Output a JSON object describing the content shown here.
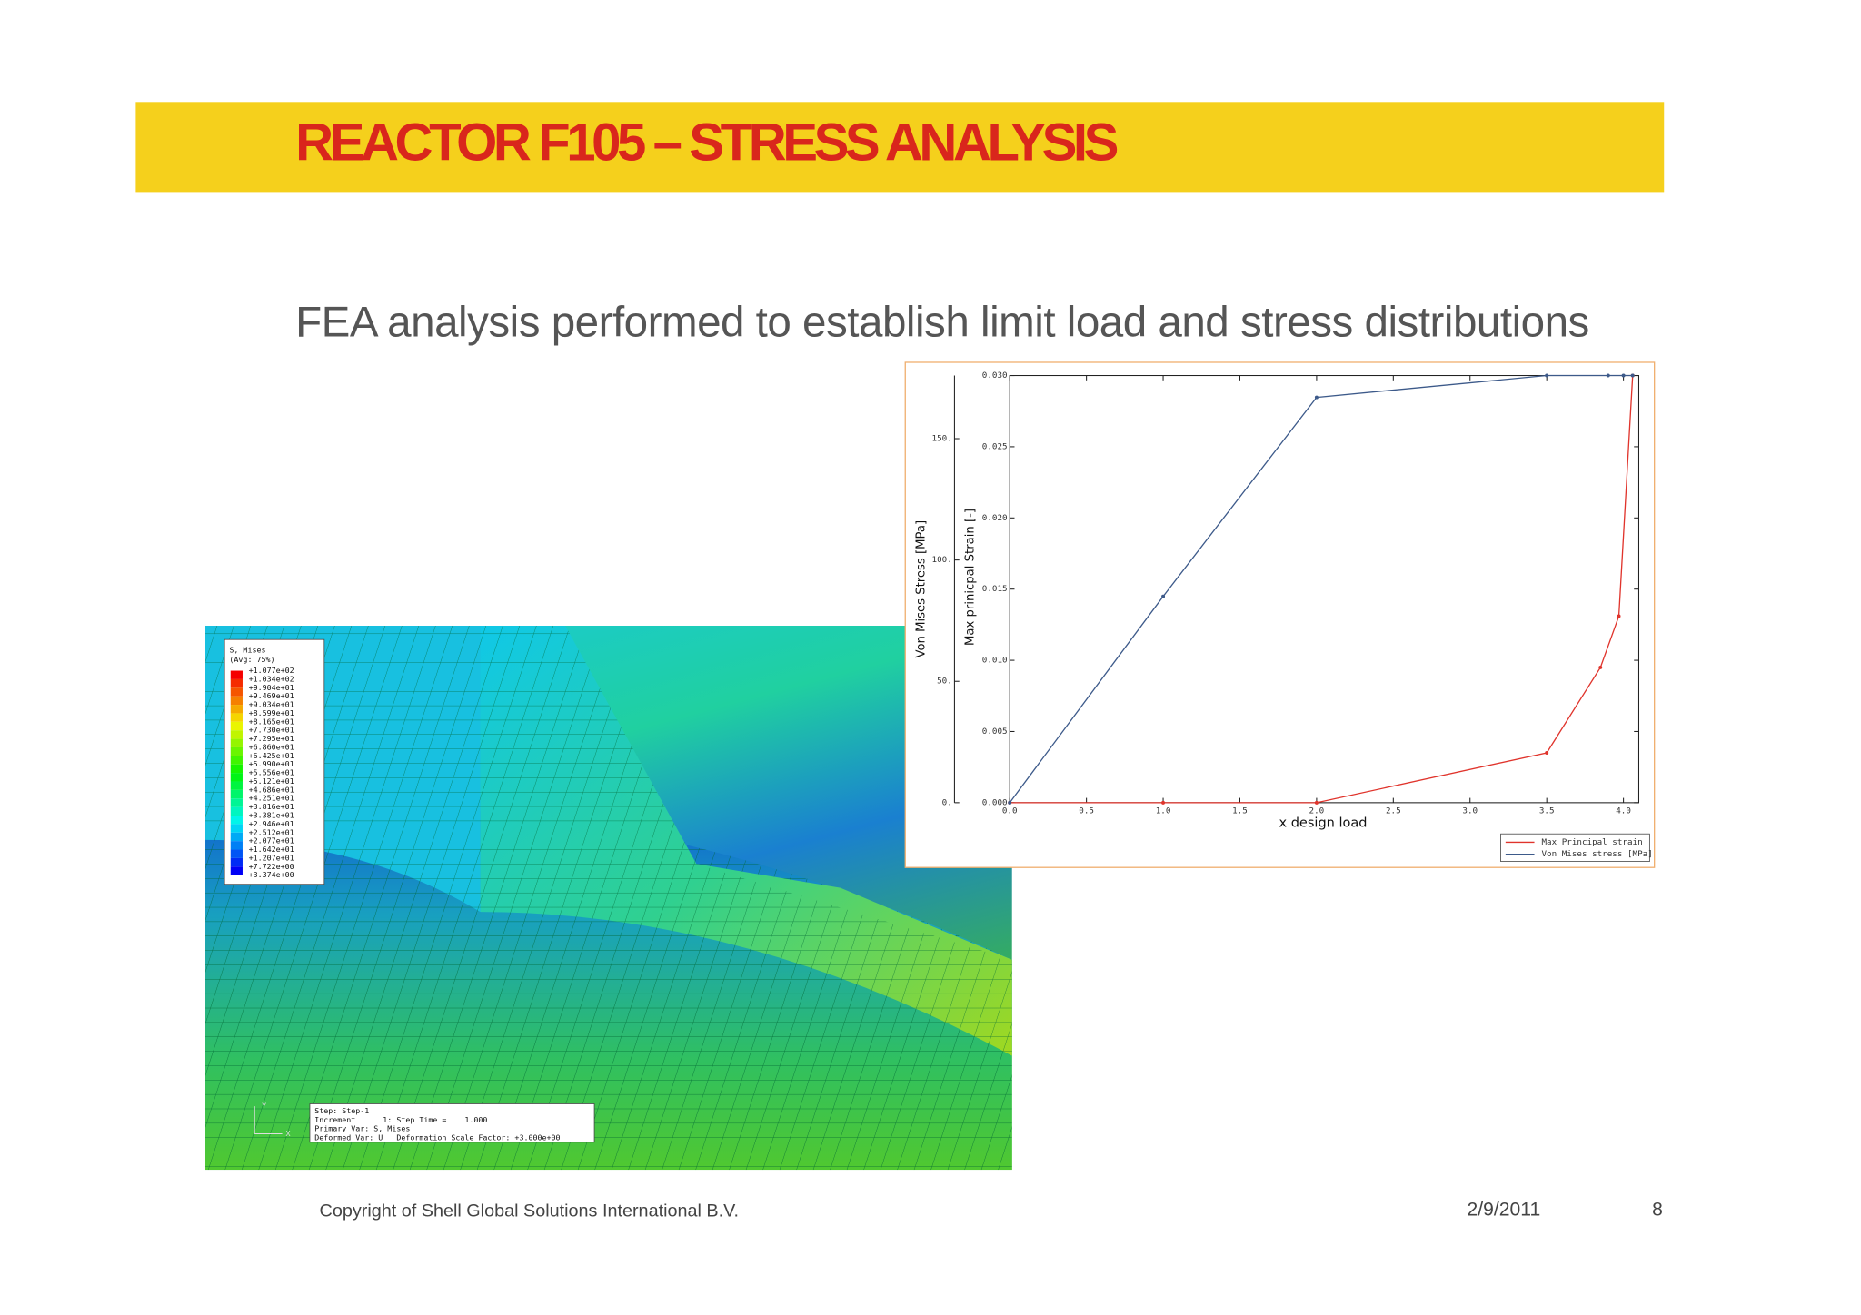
{
  "header": {
    "title": "REACTOR F105 – STRESS ANALYSIS"
  },
  "subtitle": "FEA analysis performed to establish limit load and stress distributions",
  "fea_image": {
    "legend_title": "S, Mises",
    "legend_subtitle": "(Avg: 75%)",
    "legend_values": [
      "+1.077e+02",
      "+1.034e+02",
      "+9.904e+01",
      "+9.469e+01",
      "+9.034e+01",
      "+8.599e+01",
      "+8.165e+01",
      "+7.730e+01",
      "+7.295e+01",
      "+6.860e+01",
      "+6.425e+01",
      "+5.990e+01",
      "+5.556e+01",
      "+5.121e+01",
      "+4.686e+01",
      "+4.251e+01",
      "+3.816e+01",
      "+3.381e+01",
      "+2.946e+01",
      "+2.512e+01",
      "+2.077e+01",
      "+1.642e+01",
      "+1.207e+01",
      "+7.722e+00",
      "+3.374e+00"
    ],
    "info": [
      "Step: Step-1",
      "Increment      1: Step Time =    1.000",
      "Primary Var: S, Mises",
      "Deformed Var: U   Deformation Scale Factor: +3.000e+00"
    ],
    "triad": [
      "Y",
      "X"
    ]
  },
  "chart_data": {
    "type": "line",
    "xlabel": "x design load",
    "ylabel": "Von Mises Stress [MPa]",
    "y2label": "Max prinicpal Strain [-]",
    "xlim": [
      0,
      4.1
    ],
    "xticks": [
      {
        "value": 0,
        "label": "0.0"
      },
      {
        "value": 0.5,
        "label": "0.5"
      },
      {
        "value": 1,
        "label": "1.0"
      },
      {
        "value": 1.5,
        "label": "1.5"
      },
      {
        "value": 2,
        "label": "2.0"
      },
      {
        "value": 2.5,
        "label": "2.5"
      },
      {
        "value": 3,
        "label": "3.0"
      },
      {
        "value": 3.5,
        "label": "3.5"
      },
      {
        "value": 4,
        "label": "4.0"
      }
    ],
    "ylim": [
      0,
      176
    ],
    "yticks": [
      {
        "value": 0,
        "label": "0."
      },
      {
        "value": 50,
        "label": "50."
      },
      {
        "value": 100,
        "label": "100."
      },
      {
        "value": 150,
        "label": "150."
      }
    ],
    "y2lim": [
      0,
      0.03
    ],
    "y2ticks": [
      {
        "value": 0,
        "label": "0.000"
      },
      {
        "value": 0.005,
        "label": "0.005"
      },
      {
        "value": 0.01,
        "label": "0.010"
      },
      {
        "value": 0.015,
        "label": "0.015"
      },
      {
        "value": 0.02,
        "label": "0.020"
      },
      {
        "value": 0.025,
        "label": "0.025"
      },
      {
        "value": 0.03,
        "label": "0.030"
      }
    ],
    "legend": "lower right",
    "series": [
      {
        "name": "Max Principal strain",
        "color": "#e0342c",
        "axis": "y2",
        "x": [
          0,
          1,
          2,
          3.5,
          3.85,
          3.97,
          4.06
        ],
        "values": [
          0,
          0,
          0,
          0.0035,
          0.0095,
          0.0131,
          0.03
        ]
      },
      {
        "name": "Von Mises stress [MPa]",
        "color": "#3d5a8a",
        "x": [
          0,
          1,
          2,
          3.5,
          3.9,
          4.0,
          4.06
        ],
        "values": [
          0,
          85,
          167,
          176,
          176,
          176,
          176
        ]
      }
    ]
  },
  "footer": {
    "copyright": "Copyright of Shell Global Solutions International B.V.",
    "date": "2/9/2011",
    "page": "8"
  }
}
